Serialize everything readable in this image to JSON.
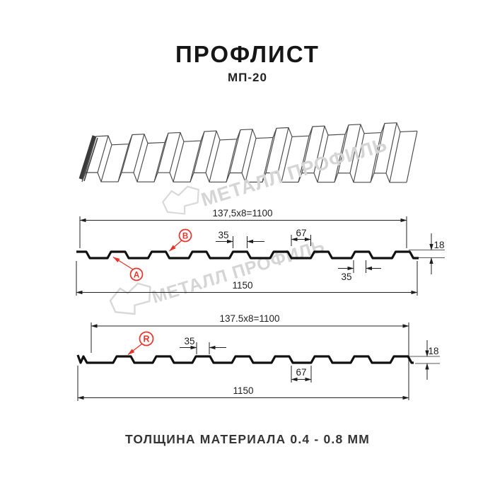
{
  "title": "ПРОФЛИСТ",
  "subtitle": "МП-20",
  "footer": "ТОЛЩИНА МАТЕРИАЛА 0.4 - 0.8 ММ",
  "watermark": {
    "text": "МЕТАЛЛ ПРОФИЛЬ"
  },
  "colors": {
    "red": "#e8332a",
    "line": "#222222",
    "profile": "#111111",
    "wm": "#d5d5d5",
    "wmlogo": "#d9d9d9"
  },
  "section1": {
    "dim_width_top": "137,5x8=1100",
    "dim_rib_top": "35",
    "dim_gap": "67",
    "dim_height": "18",
    "dim_rib_bottom": "35",
    "dim_total": "1150",
    "marker_a": "A",
    "marker_b": "B"
  },
  "section2": {
    "dim_width_top": "137.5x8=1100",
    "dim_rib_top": "35",
    "dim_gap": "67",
    "dim_height": "18",
    "dim_total": "1150",
    "marker_r": "R"
  }
}
